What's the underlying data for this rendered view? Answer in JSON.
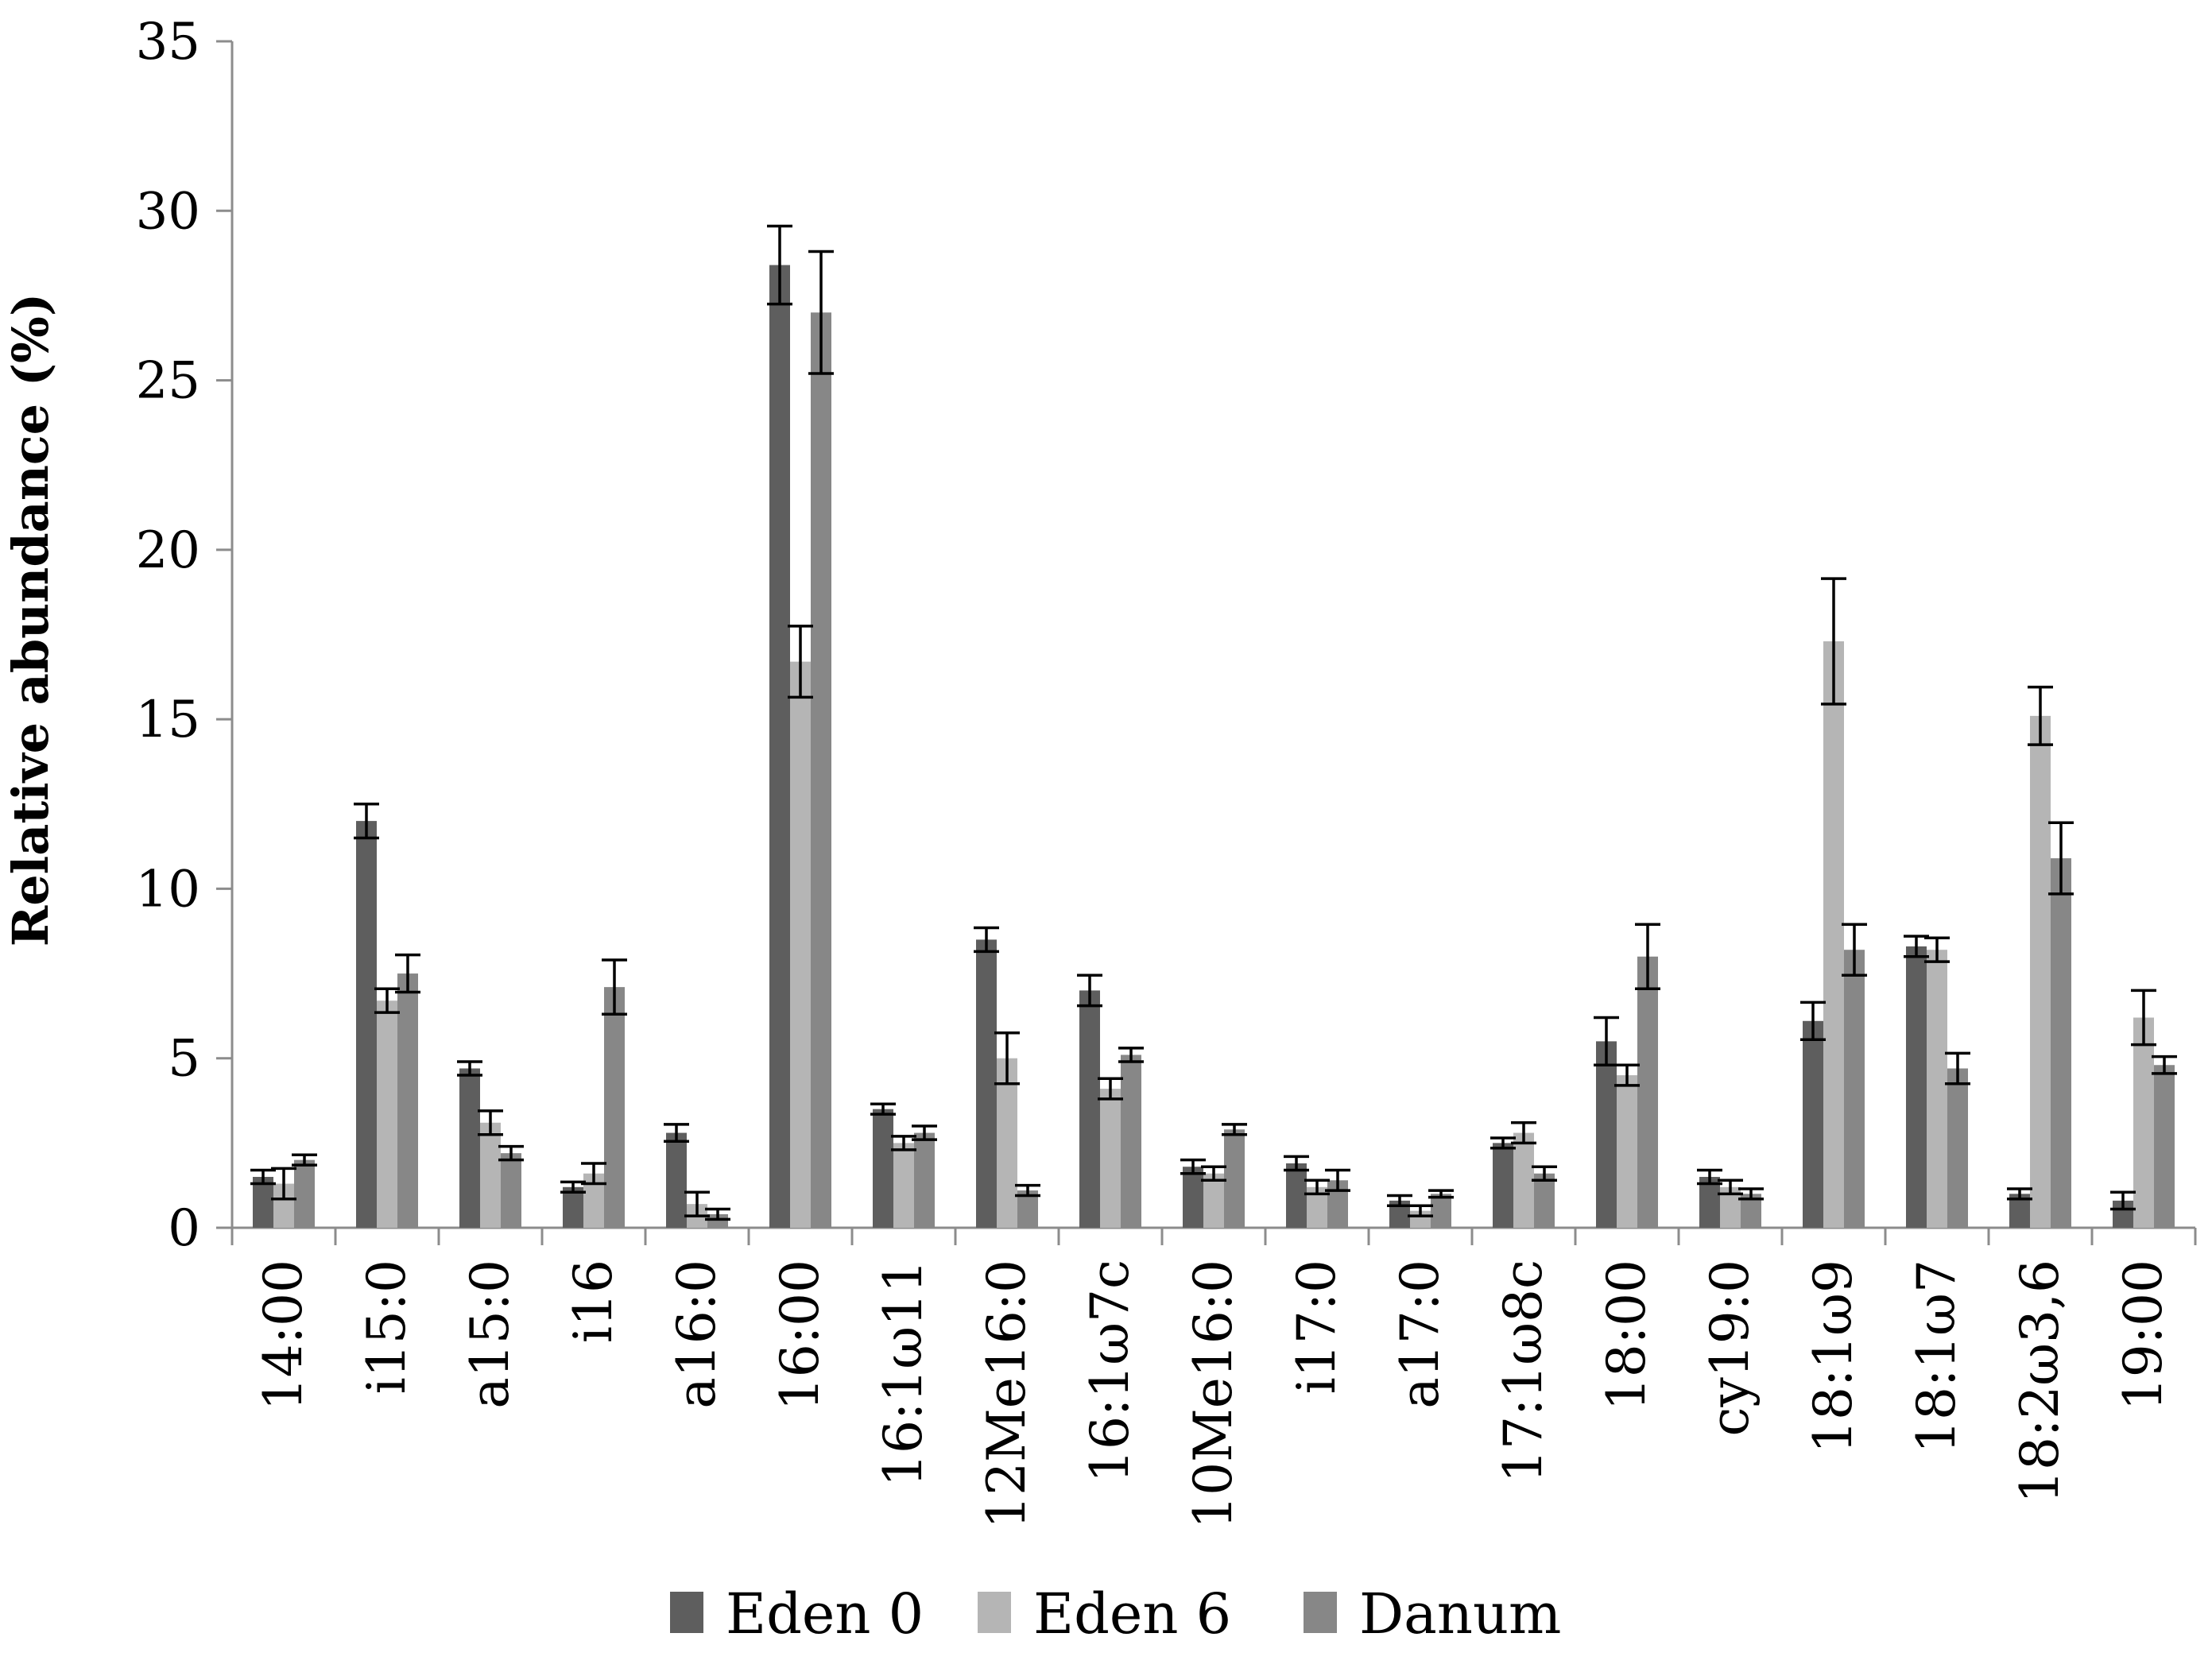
{
  "chart_data": {
    "type": "bar",
    "title": "",
    "xlabel": "",
    "ylabel": "Relative abundance (%)",
    "ylim": [
      0,
      35
    ],
    "yticks": [
      0,
      5,
      10,
      15,
      20,
      25,
      30,
      35
    ],
    "grid": false,
    "legend_position": "bottom",
    "categories": [
      "14:00",
      "i15:0",
      "a15:0",
      "i16",
      "a16:0",
      "16:00",
      "16:1ω11",
      "12Me16:0",
      "16:1ω7c",
      "10Me16:0",
      "i17:0",
      "a17:0",
      "17:1ω8c",
      "18:00",
      "cy19:0",
      "18:1ω9",
      "18:1ω7",
      "18:2ω3,6",
      "19:00"
    ],
    "series": [
      {
        "name": "Eden 0",
        "color": "#5e5e5e",
        "values": [
          1.5,
          12.0,
          4.7,
          1.2,
          2.8,
          28.4,
          3.5,
          8.5,
          7.0,
          1.8,
          1.9,
          0.8,
          2.5,
          5.5,
          1.5,
          6.1,
          8.3,
          1.0,
          0.8
        ],
        "errors": [
          0.2,
          0.5,
          0.2,
          0.15,
          0.25,
          1.15,
          0.15,
          0.35,
          0.45,
          0.2,
          0.2,
          0.15,
          0.15,
          0.7,
          0.2,
          0.55,
          0.3,
          0.15,
          0.25
        ]
      },
      {
        "name": "Eden 6",
        "color": "#b5b5b5",
        "values": [
          1.3,
          6.7,
          3.1,
          1.6,
          0.7,
          16.7,
          2.5,
          5.0,
          4.1,
          1.6,
          1.2,
          0.5,
          2.8,
          4.5,
          1.2,
          17.3,
          8.2,
          15.1,
          6.2
        ],
        "errors": [
          0.45,
          0.35,
          0.35,
          0.3,
          0.35,
          1.05,
          0.2,
          0.75,
          0.3,
          0.2,
          0.2,
          0.15,
          0.3,
          0.3,
          0.2,
          1.85,
          0.35,
          0.85,
          0.8
        ]
      },
      {
        "name": "Danum",
        "color": "#878787",
        "values": [
          2.0,
          7.5,
          2.2,
          7.1,
          0.4,
          27.0,
          2.8,
          1.1,
          5.1,
          2.9,
          1.4,
          1.0,
          1.6,
          8.0,
          1.0,
          8.2,
          4.7,
          10.9,
          4.8
        ],
        "errors": [
          0.15,
          0.55,
          0.2,
          0.8,
          0.15,
          1.8,
          0.2,
          0.15,
          0.2,
          0.15,
          0.3,
          0.1,
          0.2,
          0.95,
          0.15,
          0.75,
          0.45,
          1.05,
          0.25
        ]
      }
    ]
  }
}
